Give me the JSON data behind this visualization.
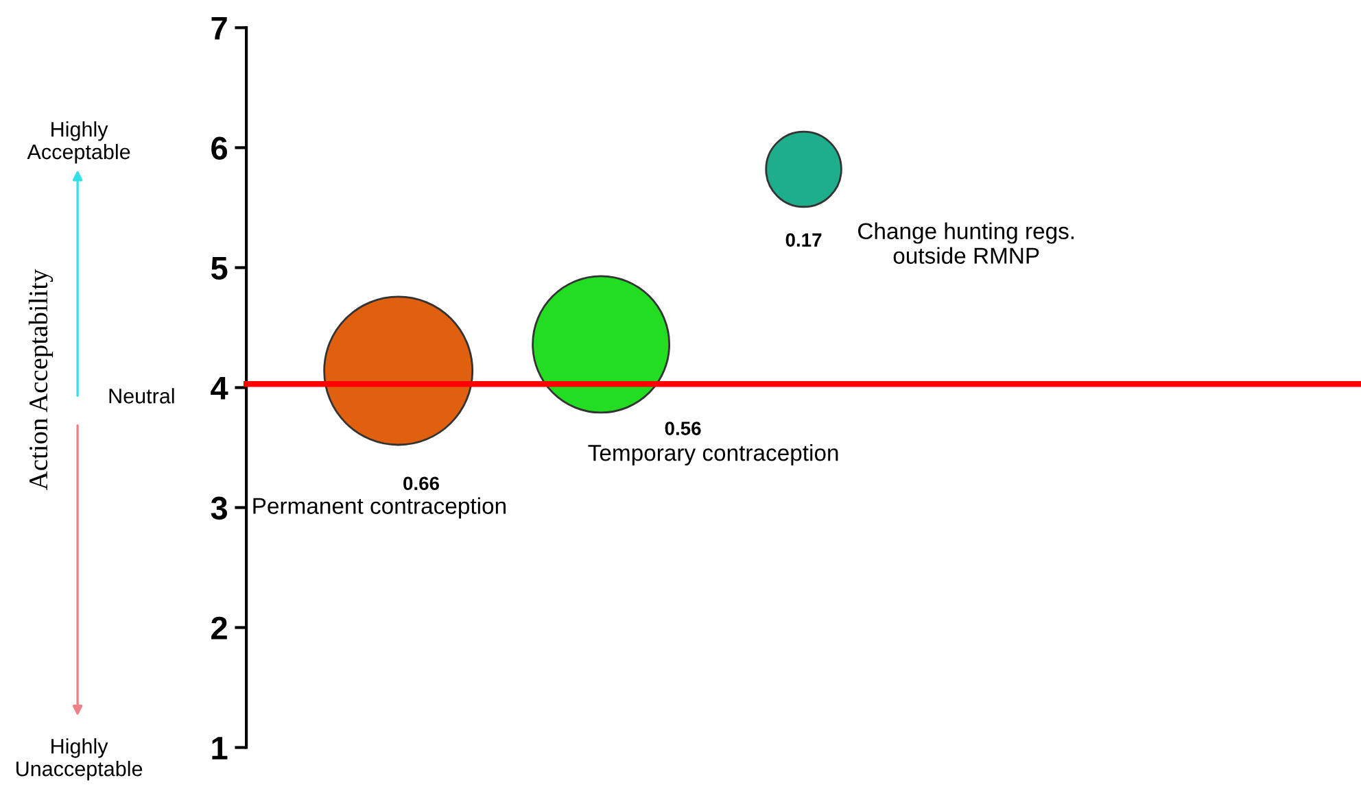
{
  "chart_data": {
    "type": "bubble",
    "categories": [
      null,
      null,
      null,
      null,
      null,
      null,
      null,
      null,
      null,
      null,
      null
    ],
    "values": [
      null,
      4.14,
      null,
      4.36,
      null,
      5.82,
      null,
      null,
      null,
      null,
      null
    ],
    "sizes": [
      null,
      0.66,
      null,
      0.56,
      null,
      0.17,
      null,
      null,
      null,
      null,
      null
    ],
    "value_labels": [
      null,
      "0.66",
      null,
      "0.56",
      null,
      "0.17",
      null,
      null,
      null,
      null,
      null
    ],
    "colors": [
      null,
      "#e0600f",
      null,
      "#22dd22",
      null,
      "#1fae8c",
      null,
      null,
      null,
      null,
      null
    ],
    "ylim": [
      1,
      7
    ],
    "yticks": [
      1,
      2,
      3,
      4,
      5,
      6,
      7
    ],
    "tick_labels": "y",
    "grid": false,
    "legend": false,
    "ref_lines": [
      {
        "axis": "y",
        "value": 4.03,
        "color": "#ff0000"
      }
    ],
    "annotations": [
      "Permanent contraception",
      "Temporary contraception",
      "Change hunting regs.\noutside RMNP",
      "Action Acceptability",
      "Highly\nAcceptable",
      "Neutral",
      "Highly\nUnacceptable"
    ]
  }
}
